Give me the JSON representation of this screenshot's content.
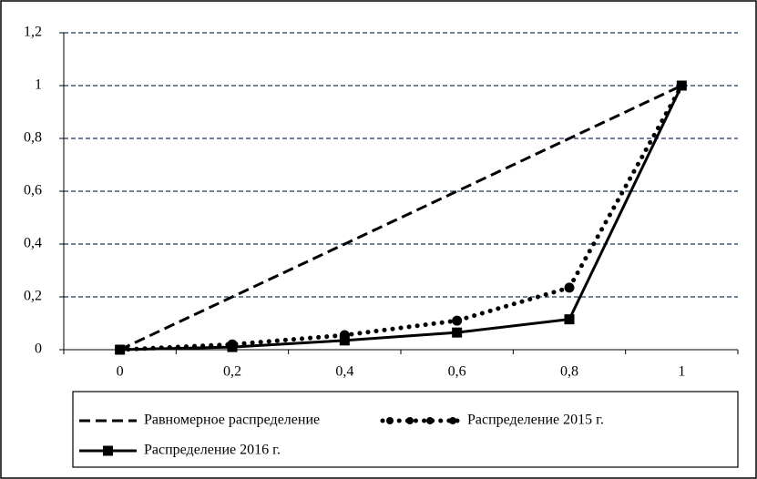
{
  "chart_data": {
    "type": "line",
    "categories": [
      "0",
      "0,2",
      "0,4",
      "0,6",
      "0,8",
      "1"
    ],
    "series": [
      {
        "name": "Равномерное распределение",
        "color": "#000000",
        "dash": "dashed",
        "marker": "none",
        "values": [
          0,
          0.2,
          0.4,
          0.6,
          0.8,
          1
        ]
      },
      {
        "name": "Распределение 2015 г.",
        "color": "#000000",
        "dash": "dotted",
        "marker": "circle",
        "values": [
          0,
          0.02,
          0.055,
          0.11,
          0.235,
          1
        ]
      },
      {
        "name": "Распределение 2016 г.",
        "color": "#000000",
        "dash": "solid",
        "marker": "square",
        "values": [
          0,
          0.01,
          0.035,
          0.065,
          0.115,
          1
        ]
      }
    ],
    "ylim": [
      0,
      1.2
    ],
    "yticks": [
      0,
      {
        "value": 0.2,
        "label": "0,2"
      },
      {
        "value": 0.4,
        "label": "0,4"
      },
      {
        "value": 0.6,
        "label": "0,6"
      },
      {
        "value": 0.8,
        "label": "0,8"
      },
      1,
      {
        "value": 1.2,
        "label": "1,2"
      }
    ],
    "grid": true,
    "grid_color": "#1f3864",
    "legend": "bottom"
  }
}
